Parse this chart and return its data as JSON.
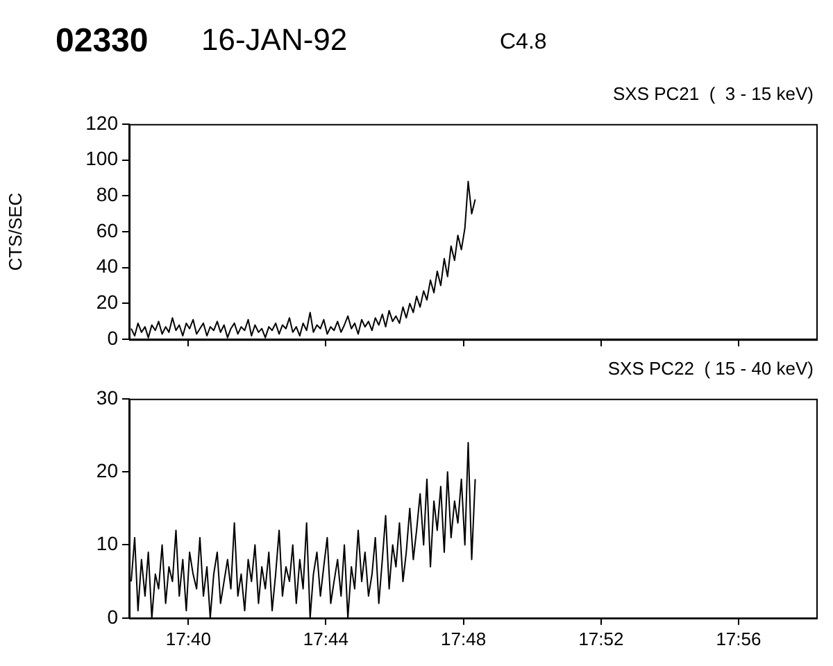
{
  "chart_data": [
    {
      "type": "line",
      "title": "SXS PC21  (  3 - 15 keV)",
      "annotations": [
        "02330",
        "16-JAN-92",
        "C4.8"
      ],
      "ylabel": "CTS/SEC",
      "x": [
        17.639,
        17.6407,
        17.6423,
        17.644,
        17.6457,
        17.6473,
        17.649,
        17.6507,
        17.6523,
        17.654,
        17.6557,
        17.6573,
        17.659,
        17.6607,
        17.6623,
        17.664,
        17.6657,
        17.6673,
        17.669,
        17.6707,
        17.6723,
        17.674,
        17.6757,
        17.6773,
        17.679,
        17.6807,
        17.6823,
        17.684,
        17.6857,
        17.6873,
        17.689,
        17.6907,
        17.6923,
        17.694,
        17.6957,
        17.6973,
        17.699,
        17.7007,
        17.7023,
        17.704,
        17.7057,
        17.7073,
        17.709,
        17.7107,
        17.7123,
        17.714,
        17.7157,
        17.7173,
        17.719,
        17.7207,
        17.7223,
        17.724,
        17.7257,
        17.7273,
        17.729,
        17.7307,
        17.7323,
        17.734,
        17.7357,
        17.7373,
        17.739,
        17.7407,
        17.7423,
        17.744,
        17.7457,
        17.7473,
        17.749,
        17.7507,
        17.7523,
        17.754,
        17.7557,
        17.7573,
        17.759,
        17.7607,
        17.7623,
        17.764,
        17.7657,
        17.7673,
        17.769,
        17.7707,
        17.7723,
        17.774,
        17.7757,
        17.7773,
        17.779,
        17.7807,
        17.7823,
        17.784,
        17.7857,
        17.7873,
        17.789,
        17.7907,
        17.7923,
        17.794,
        17.7957,
        17.7973,
        17.799,
        17.8007,
        17.8023,
        17.804,
        17.8057
      ],
      "series": [
        {
          "color": "#000000",
          "values": [
            6,
            2,
            9,
            4,
            7,
            1,
            8,
            5,
            10,
            3,
            7,
            4,
            12,
            5,
            8,
            2,
            9,
            6,
            11,
            3,
            6,
            9,
            2,
            7,
            5,
            10,
            4,
            8,
            1,
            6,
            9,
            3,
            7,
            5,
            11,
            2,
            8,
            4,
            6,
            1,
            7,
            5,
            9,
            3,
            8,
            6,
            12,
            4,
            7,
            2,
            9,
            5,
            15,
            4,
            8,
            6,
            11,
            3,
            7,
            5,
            10,
            4,
            8,
            13,
            6,
            9,
            3,
            11,
            7,
            10,
            5,
            12,
            8,
            14,
            7,
            16,
            10,
            13,
            9,
            18,
            12,
            20,
            15,
            24,
            18,
            27,
            22,
            33,
            26,
            38,
            30,
            45,
            35,
            52,
            44,
            58,
            50,
            62,
            88,
            70,
            78
          ]
        }
      ],
      "xlim": [
        17.638,
        17.971
      ],
      "xticks": [
        {
          "value": 17.6667,
          "label": null
        },
        {
          "value": 17.7333,
          "label": null
        },
        {
          "value": 17.8,
          "label": null
        },
        {
          "value": 17.8667,
          "label": null
        },
        {
          "value": 17.9333,
          "label": null
        }
      ],
      "ylim": [
        0,
        120
      ],
      "yticks": [
        0,
        20,
        40,
        60,
        80,
        100,
        120
      ],
      "tick_labels": "y",
      "marker": "none",
      "legend": false,
      "grid": false
    },
    {
      "type": "line",
      "title": "SXS PC22  ( 15 - 40 keV)",
      "x": [
        17.639,
        17.6407,
        17.6423,
        17.644,
        17.6457,
        17.6473,
        17.649,
        17.6507,
        17.6523,
        17.654,
        17.6557,
        17.6573,
        17.659,
        17.6607,
        17.6623,
        17.664,
        17.6657,
        17.6673,
        17.669,
        17.6707,
        17.6723,
        17.674,
        17.6757,
        17.6773,
        17.679,
        17.6807,
        17.6823,
        17.684,
        17.6857,
        17.6873,
        17.689,
        17.6907,
        17.6923,
        17.694,
        17.6957,
        17.6973,
        17.699,
        17.7007,
        17.7023,
        17.704,
        17.7057,
        17.7073,
        17.709,
        17.7107,
        17.7123,
        17.714,
        17.7157,
        17.7173,
        17.719,
        17.7207,
        17.7223,
        17.724,
        17.7257,
        17.7273,
        17.729,
        17.7307,
        17.7323,
        17.734,
        17.7357,
        17.7373,
        17.739,
        17.7407,
        17.7423,
        17.744,
        17.7457,
        17.7473,
        17.749,
        17.7507,
        17.7523,
        17.754,
        17.7557,
        17.7573,
        17.759,
        17.7607,
        17.7623,
        17.764,
        17.7657,
        17.7673,
        17.769,
        17.7707,
        17.7723,
        17.774,
        17.7757,
        17.7773,
        17.779,
        17.7807,
        17.7823,
        17.784,
        17.7857,
        17.7873,
        17.789,
        17.7907,
        17.7923,
        17.794,
        17.7957,
        17.7973,
        17.799,
        17.8007,
        17.8023,
        17.804,
        17.8057
      ],
      "series": [
        {
          "color": "#000000",
          "values": [
            5,
            11,
            1,
            8,
            3,
            9,
            0,
            6,
            4,
            10,
            2,
            7,
            5,
            12,
            3,
            8,
            1,
            9,
            6,
            4,
            11,
            3,
            7,
            0,
            6,
            9,
            2,
            5,
            8,
            4,
            13,
            3,
            6,
            1,
            8,
            5,
            10,
            2,
            7,
            4,
            9,
            1,
            6,
            12,
            3,
            7,
            5,
            10,
            2,
            8,
            4,
            13,
            0,
            6,
            9,
            3,
            7,
            11,
            2,
            5,
            8,
            3,
            10,
            0,
            7,
            4,
            12,
            5,
            9,
            3,
            6,
            11,
            2,
            8,
            14,
            4,
            10,
            7,
            13,
            5,
            9,
            15,
            8,
            12,
            17,
            10,
            19,
            7,
            16,
            12,
            18,
            9,
            20,
            11,
            16,
            13,
            19,
            10,
            24,
            8,
            19
          ]
        }
      ],
      "xlim": [
        17.638,
        17.971
      ],
      "xticks": [
        {
          "value": 17.6667,
          "label": "17:40"
        },
        {
          "value": 17.7333,
          "label": "17:44"
        },
        {
          "value": 17.8,
          "label": "17:48"
        },
        {
          "value": 17.8667,
          "label": "17:52"
        },
        {
          "value": 17.9333,
          "label": "17:56"
        }
      ],
      "ylim": [
        0,
        30
      ],
      "yticks": [
        0,
        10,
        20,
        30
      ],
      "marker": "none",
      "legend": false,
      "grid": false
    }
  ]
}
